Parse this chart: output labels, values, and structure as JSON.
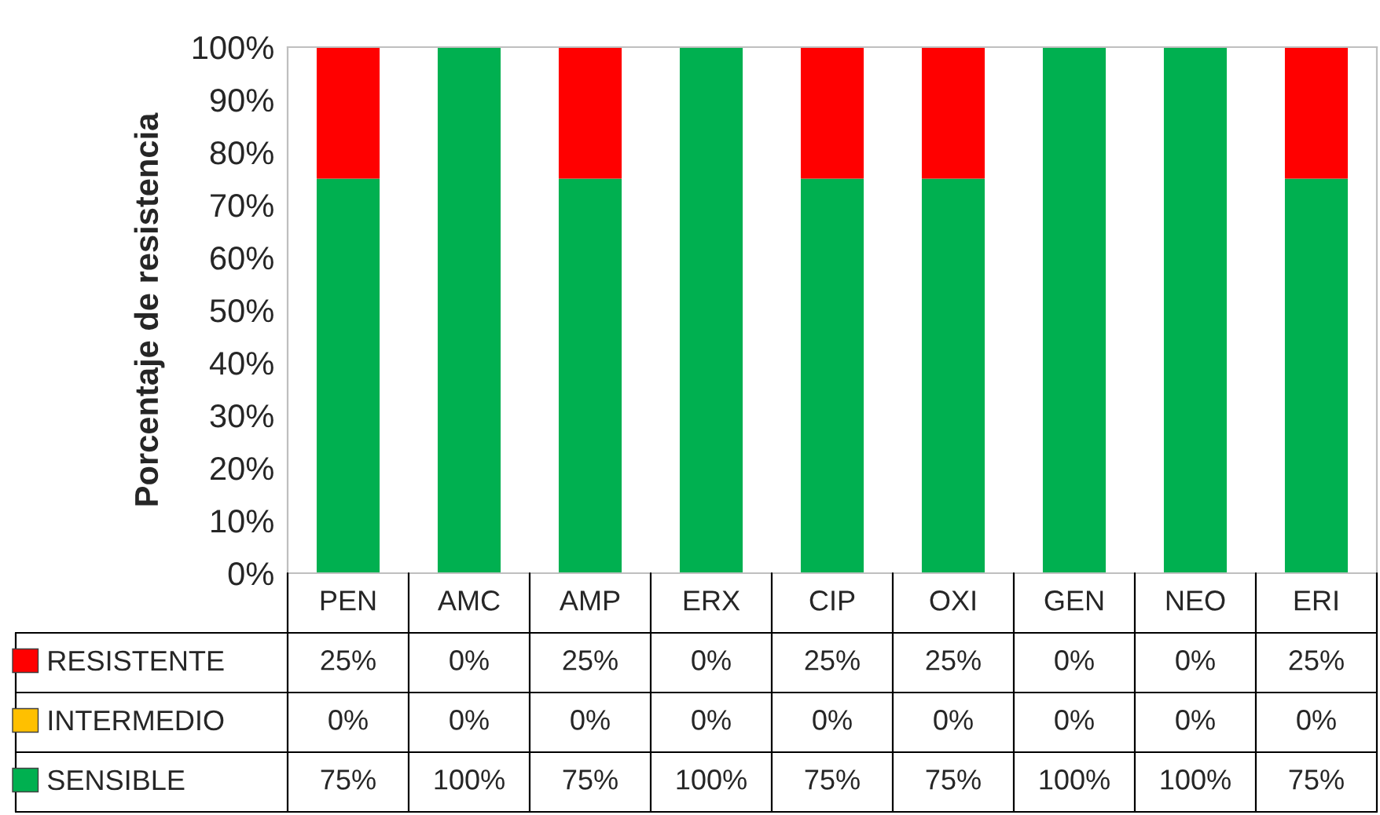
{
  "chart_data": {
    "type": "bar",
    "stacked": true,
    "ylabel": "Porcentaje de resistencia",
    "categories": [
      "PEN",
      "AMC",
      "AMP",
      "ERX",
      "CIP",
      "OXI",
      "GEN",
      "NEO",
      "ERI"
    ],
    "series": [
      {
        "name": "SENSIBLE",
        "color": "#00b050",
        "values": [
          75,
          100,
          75,
          100,
          75,
          75,
          100,
          100,
          75
        ],
        "value_labels": [
          "75%",
          "100%",
          "75%",
          "100%",
          "75%",
          "75%",
          "100%",
          "100%",
          "75%"
        ]
      },
      {
        "name": "INTERMEDIO",
        "color": "#ffc000",
        "values": [
          0,
          0,
          0,
          0,
          0,
          0,
          0,
          0,
          0
        ],
        "value_labels": [
          "0%",
          "0%",
          "0%",
          "0%",
          "0%",
          "0%",
          "0%",
          "0%",
          "0%"
        ]
      },
      {
        "name": "RESISTENTE",
        "color": "#ff0000",
        "values": [
          25,
          0,
          25,
          0,
          25,
          25,
          0,
          0,
          25
        ],
        "value_labels": [
          "25%",
          "0%",
          "25%",
          "0%",
          "25%",
          "25%",
          "0%",
          "0%",
          "25%"
        ]
      }
    ],
    "ylim": [
      0,
      100
    ],
    "yticks": [
      {
        "value": 0,
        "label": "0%"
      },
      {
        "value": 10,
        "label": "10%"
      },
      {
        "value": 20,
        "label": "20%"
      },
      {
        "value": 30,
        "label": "30%"
      },
      {
        "value": 40,
        "label": "40%"
      },
      {
        "value": 50,
        "label": "50%"
      },
      {
        "value": 60,
        "label": "60%"
      },
      {
        "value": 70,
        "label": "70%"
      },
      {
        "value": 80,
        "label": "80%"
      },
      {
        "value": 90,
        "label": "90%"
      },
      {
        "value": 100,
        "label": "100%"
      }
    ],
    "grid": false,
    "legend": "bottom"
  }
}
